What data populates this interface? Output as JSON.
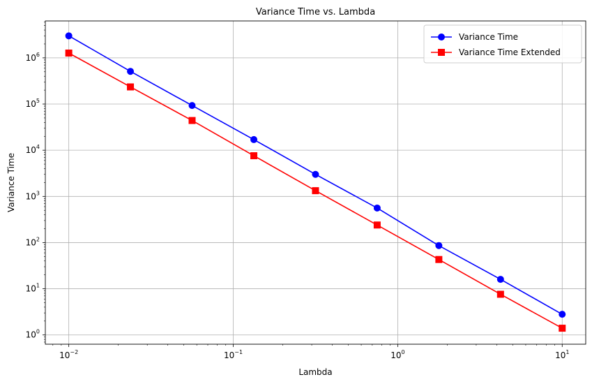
{
  "chart_data": {
    "type": "line",
    "title": "Variance Time vs. Lambda",
    "xlabel": "Lambda",
    "ylabel": "Variance Time",
    "xscale": "log",
    "yscale": "log",
    "xlim": [
      0.0072,
      13.9
    ],
    "ylim": [
      0.63,
      6300000
    ],
    "grid": true,
    "legend_position": "top-right",
    "x": [
      0.01,
      0.0237,
      0.0562,
      0.1334,
      0.3162,
      0.7499,
      1.7783,
      4.217,
      10.0
    ],
    "x_ticks": [
      {
        "value": 0.01,
        "base": "10",
        "exp": "−2"
      },
      {
        "value": 0.1,
        "base": "10",
        "exp": "−1"
      },
      {
        "value": 1,
        "base": "10",
        "exp": "0"
      },
      {
        "value": 10,
        "base": "10",
        "exp": "1"
      }
    ],
    "y_ticks": [
      {
        "value": 1,
        "base": "10",
        "exp": "0"
      },
      {
        "value": 10,
        "base": "10",
        "exp": "1"
      },
      {
        "value": 100,
        "base": "10",
        "exp": "2"
      },
      {
        "value": 1000,
        "base": "10",
        "exp": "3"
      },
      {
        "value": 10000,
        "base": "10",
        "exp": "4"
      },
      {
        "value": 100000,
        "base": "10",
        "exp": "5"
      },
      {
        "value": 1000000,
        "base": "10",
        "exp": "6"
      }
    ],
    "series": [
      {
        "name": "Variance Time",
        "color": "#0000ff",
        "marker": "circle",
        "values": [
          3000000,
          510000,
          93000,
          17000,
          3000,
          560,
          86,
          16,
          2.8
        ]
      },
      {
        "name": "Variance Time Extended",
        "color": "#ff0000",
        "marker": "square",
        "values": [
          1270000,
          235000,
          44000,
          7600,
          1330,
          240,
          43,
          7.6,
          1.4
        ]
      }
    ]
  }
}
